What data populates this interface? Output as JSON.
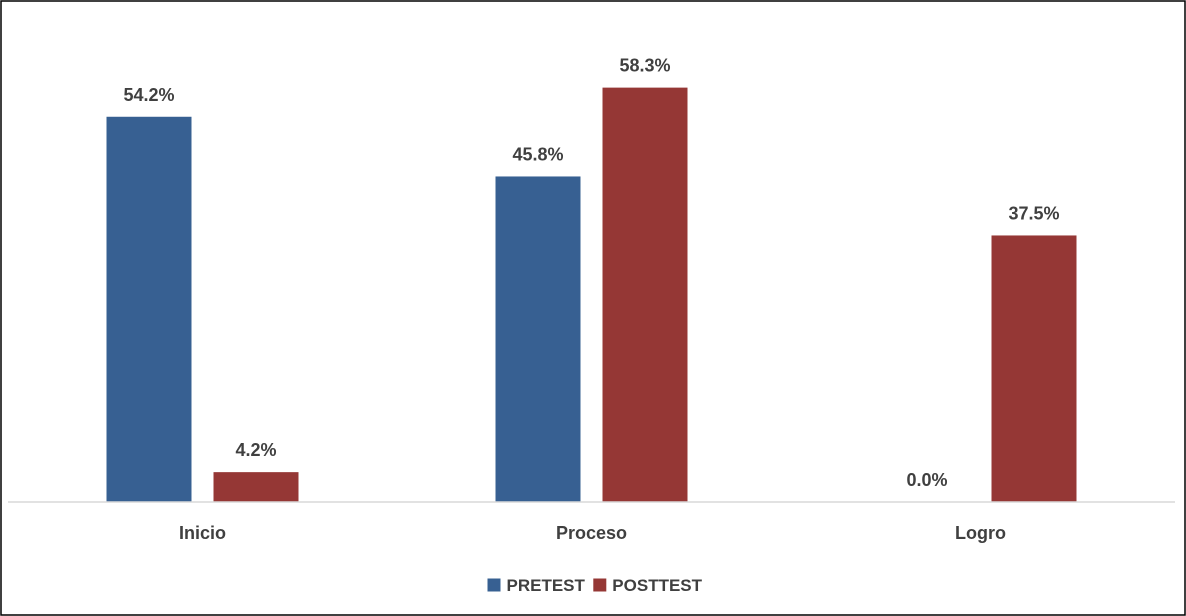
{
  "chart_data": {
    "type": "bar",
    "title": "",
    "xlabel": "",
    "ylabel": "",
    "categories": [
      "Inicio",
      "Proceso",
      "Logro"
    ],
    "series": [
      {
        "name": "PRETEST",
        "color": "#376092",
        "values": [
          54.2,
          45.8,
          0.0
        ],
        "labels": [
          "54.2%",
          "45.8%",
          "0.0%"
        ]
      },
      {
        "name": "POSTTEST",
        "color": "#953735",
        "values": [
          4.2,
          58.3,
          37.5
        ],
        "labels": [
          "4.2%",
          "58.3%",
          "37.5%"
        ]
      }
    ],
    "ylim": [
      0,
      65
    ],
    "grid": false,
    "legend_position": "bottom"
  }
}
